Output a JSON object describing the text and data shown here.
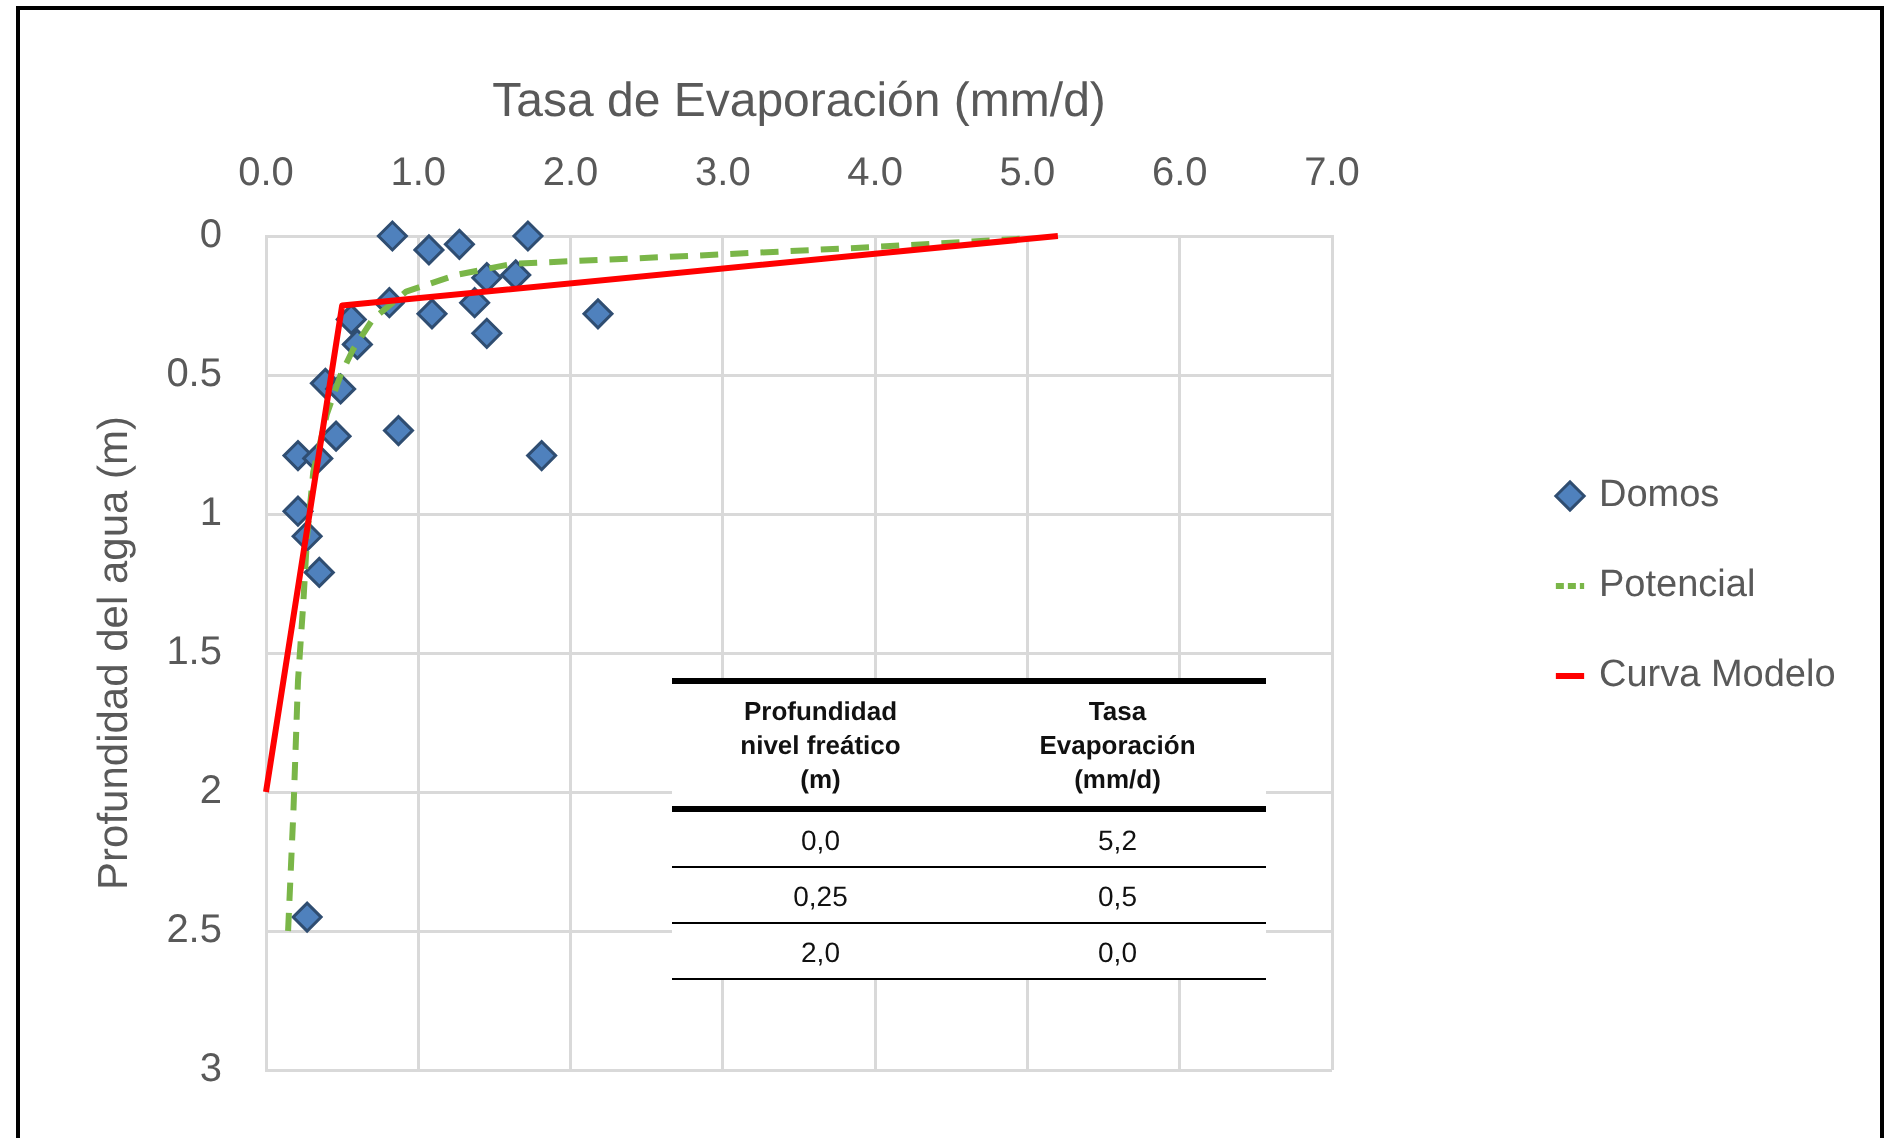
{
  "chart_data": {
    "type": "scatter",
    "xlabel": "Tasa de Evaporación (mm/d)",
    "ylabel": "Profundidad del agua (m)",
    "xlim": [
      0,
      7
    ],
    "xticks": [
      {
        "value": 0,
        "label": "0.0"
      },
      {
        "value": 1,
        "label": "1.0"
      },
      {
        "value": 2,
        "label": "2.0"
      },
      {
        "value": 3,
        "label": "3.0"
      },
      {
        "value": 4,
        "label": "4.0"
      },
      {
        "value": 5,
        "label": "5.0"
      },
      {
        "value": 6,
        "label": "6.0"
      },
      {
        "value": 7,
        "label": "7.0"
      }
    ],
    "ylim": [
      3,
      0
    ],
    "yticks": [
      0,
      0.5,
      1,
      1.5,
      2,
      2.5,
      3
    ],
    "grid": true,
    "legend": "right",
    "series": [
      {
        "name": "Domos",
        "type": "scatter",
        "marker": "diamond",
        "color": "#4f81bd",
        "x": [
          0.83,
          1.07,
          1.27,
          1.72,
          1.45,
          1.64,
          0.81,
          1.09,
          1.37,
          1.45,
          2.18,
          0.56,
          0.6,
          0.39,
          0.49,
          0.46,
          0.87,
          0.21,
          0.34,
          1.81,
          0.21,
          0.27,
          0.35,
          0.27
        ],
        "values": [
          0,
          0.05,
          0.03,
          0,
          0.15,
          0.14,
          0.24,
          0.28,
          0.24,
          0.35,
          0.28,
          0.3,
          0.39,
          0.53,
          0.55,
          0.72,
          0.7,
          0.79,
          0.8,
          0.79,
          0.99,
          1.08,
          1.21,
          2.45
        ]
      },
      {
        "name": "Potencial",
        "type": "line",
        "line_style": "dashed",
        "color": "#7ab648",
        "x": [
          0.145,
          0.18,
          0.21,
          0.245,
          0.27,
          0.31,
          0.4,
          0.49,
          0.57,
          0.7,
          0.92,
          1.25,
          1.62,
          2.85,
          3.98,
          4.95
        ],
        "values": [
          2.5,
          2.07,
          1.6,
          1.32,
          1.08,
          0.85,
          0.64,
          0.5,
          0.41,
          0.3,
          0.2,
          0.14,
          0.1,
          0.07,
          0.04,
          0.01
        ]
      },
      {
        "name": "Curva Modelo",
        "type": "line",
        "line_style": "solid",
        "color": "#ff0000",
        "x": [
          5.2,
          0.5,
          0
        ],
        "values": [
          0,
          0.25,
          2
        ]
      }
    ],
    "annotations": [
      "Profundidad nivel freático (m)",
      "Tasa Evaporación (mm/d)",
      "0,0",
      "5,2",
      "0,25",
      "0,5",
      "2,0",
      "0,0"
    ]
  }
}
